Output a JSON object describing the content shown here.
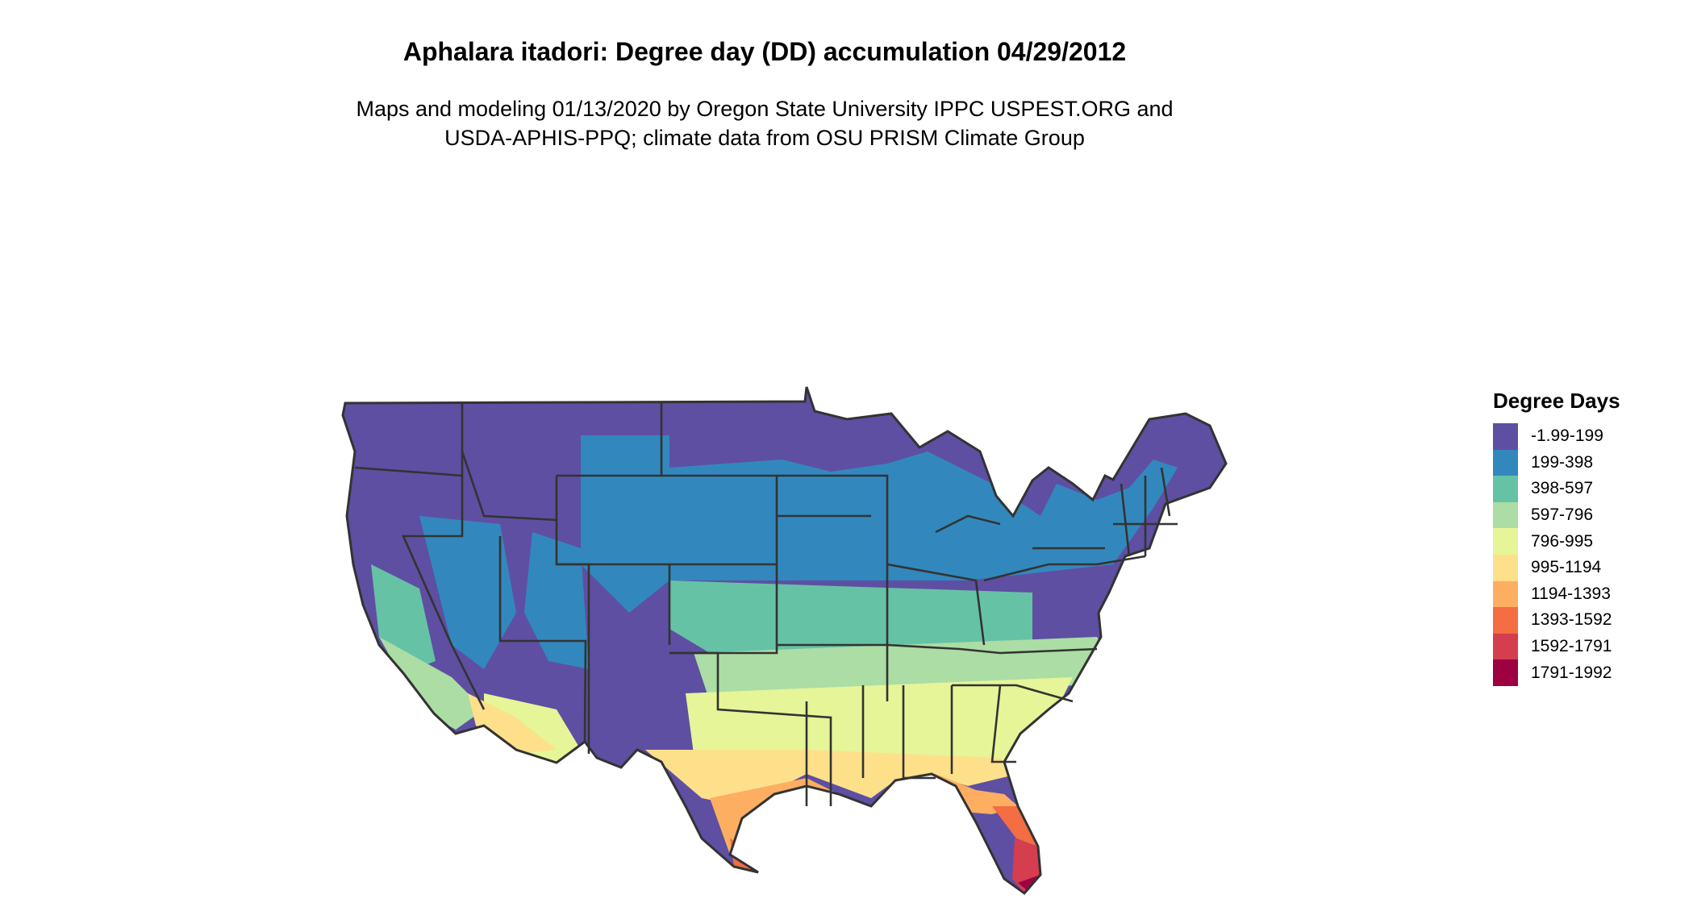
{
  "title": "Aphalara itadori: Degree day (DD) accumulation 04/29/2012",
  "subtitle_lines": [
    "Maps and modeling 01/13/2020 by Oregon State University IPPC USPEST.ORG and",
    "USDA-APHIS-PPQ; climate data from OSU PRISM Climate Group"
  ],
  "legend": {
    "title": "Degree Days",
    "items": [
      {
        "label": "-1.99-199",
        "color": "#5E4FA2"
      },
      {
        "label": "199-398",
        "color": "#3288BD"
      },
      {
        "label": "398-597",
        "color": "#66C2A5"
      },
      {
        "label": "597-796",
        "color": "#ABDDA4"
      },
      {
        "label": "796-995",
        "color": "#E6F598"
      },
      {
        "label": "995-1194",
        "color": "#FEE08B"
      },
      {
        "label": "1194-1393",
        "color": "#FDAE61"
      },
      {
        "label": "1393-1592",
        "color": "#F46D43"
      },
      {
        "label": "1592-1791",
        "color": "#D53E4F"
      },
      {
        "label": "1791-1992",
        "color": "#9E0142"
      }
    ]
  },
  "map": {
    "region": "Contiguous United States",
    "border_color": "#333333"
  }
}
